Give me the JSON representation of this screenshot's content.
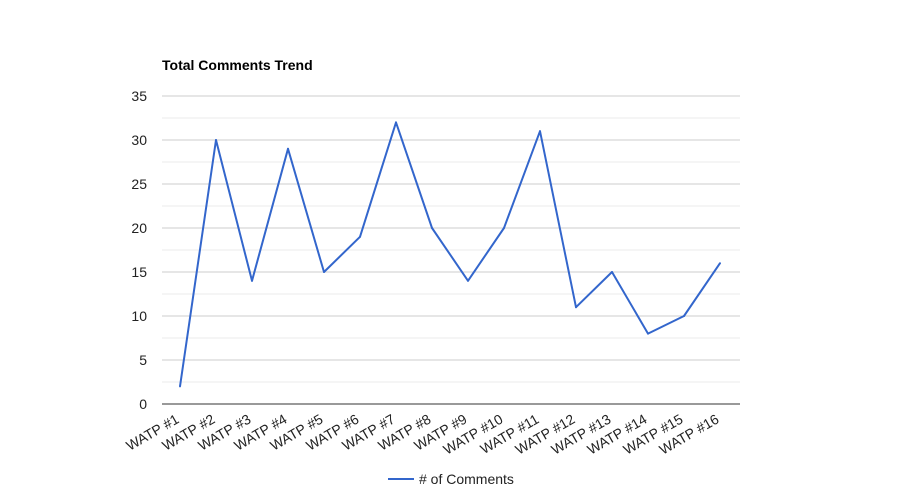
{
  "chart_data": {
    "type": "line",
    "title": "Total Comments Trend",
    "categories": [
      "WATP #1",
      "WATP #2",
      "WATP #3",
      "WATP #4",
      "WATP #5",
      "WATP #6",
      "WATP #7",
      "WATP #8",
      "WATP #9",
      "WATP #10",
      "WATP #11",
      "WATP #12",
      "WATP #13",
      "WATP #14",
      "WATP #15",
      "WATP #16"
    ],
    "series": [
      {
        "name": "# of Comments",
        "values": [
          2,
          30,
          14,
          29,
          15,
          19,
          32,
          20,
          14,
          20,
          31,
          11,
          15,
          8,
          10,
          16
        ]
      }
    ],
    "ylim": [
      0,
      35
    ],
    "yticks": [
      0,
      5,
      10,
      15,
      20,
      25,
      30,
      35
    ],
    "grid": true,
    "legend_position": "bottom",
    "colors": {
      "line": "#3366cc",
      "gridline": "#cccccc",
      "minor_gridline": "#ebebeb",
      "axis": "#333333"
    }
  }
}
